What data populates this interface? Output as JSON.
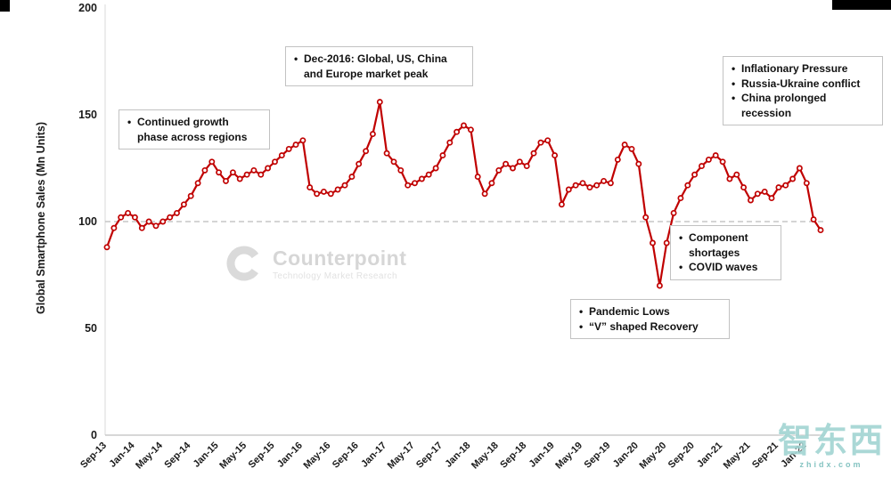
{
  "chart_data": {
    "type": "line",
    "series_name": "Global Smartphone Sales",
    "title": "",
    "xlabel": "",
    "ylabel": "Global Smartphone Sales (Mn Units)",
    "ylim": [
      0,
      200
    ],
    "yticks": [
      0,
      50,
      100,
      150,
      200
    ],
    "reference_line_y": 100,
    "line_color": "#c00000",
    "reference_color": "#c6c6c6",
    "grid": false,
    "legend": "none",
    "x_label_interval": 4,
    "x": [
      "Sep-13",
      "Oct-13",
      "Nov-13",
      "Dec-13",
      "Jan-14",
      "Feb-14",
      "Mar-14",
      "Apr-14",
      "May-14",
      "Jun-14",
      "Jul-14",
      "Aug-14",
      "Sep-14",
      "Oct-14",
      "Nov-14",
      "Dec-14",
      "Jan-15",
      "Feb-15",
      "Mar-15",
      "Apr-15",
      "May-15",
      "Jun-15",
      "Jul-15",
      "Aug-15",
      "Sep-15",
      "Oct-15",
      "Nov-15",
      "Dec-15",
      "Jan-16",
      "Feb-16",
      "Mar-16",
      "Apr-16",
      "May-16",
      "Jun-16",
      "Jul-16",
      "Aug-16",
      "Sep-16",
      "Oct-16",
      "Nov-16",
      "Dec-16",
      "Jan-17",
      "Feb-17",
      "Mar-17",
      "Apr-17",
      "May-17",
      "Jun-17",
      "Jul-17",
      "Aug-17",
      "Sep-17",
      "Oct-17",
      "Nov-17",
      "Dec-17",
      "Jan-18",
      "Feb-18",
      "Mar-18",
      "Apr-18",
      "May-18",
      "Jun-18",
      "Jul-18",
      "Aug-18",
      "Sep-18",
      "Oct-18",
      "Nov-18",
      "Dec-18",
      "Jan-19",
      "Feb-19",
      "Mar-19",
      "Apr-19",
      "May-19",
      "Jun-19",
      "Jul-19",
      "Aug-19",
      "Sep-19",
      "Oct-19",
      "Nov-19",
      "Dec-19",
      "Jan-20",
      "Feb-20",
      "Mar-20",
      "Apr-20",
      "May-20",
      "Jun-20",
      "Jul-20",
      "Aug-20",
      "Sep-20",
      "Oct-20",
      "Nov-20",
      "Dec-20",
      "Jan-21",
      "Feb-21",
      "Mar-21",
      "Apr-21",
      "May-21",
      "Jun-21",
      "Jul-21",
      "Aug-21",
      "Sep-21",
      "Oct-21",
      "Nov-21",
      "Dec-21",
      "Jan-22",
      "Feb-22",
      "Mar-22"
    ],
    "values": [
      88,
      97,
      102,
      104,
      102,
      97,
      100,
      98,
      100,
      102,
      104,
      108,
      112,
      118,
      124,
      128,
      123,
      119,
      123,
      120,
      122,
      124,
      122,
      125,
      128,
      131,
      134,
      136,
      138,
      116,
      113,
      114,
      113,
      115,
      117,
      121,
      127,
      133,
      141,
      156,
      132,
      128,
      124,
      117,
      118,
      120,
      122,
      125,
      131,
      137,
      142,
      145,
      143,
      121,
      113,
      118,
      124,
      127,
      125,
      128,
      126,
      132,
      137,
      138,
      131,
      108,
      115,
      117,
      118,
      116,
      117,
      119,
      118,
      129,
      136,
      134,
      127,
      102,
      90,
      70,
      90,
      104,
      111,
      117,
      122,
      126,
      129,
      131,
      128,
      120,
      122,
      116,
      110,
      113,
      114,
      111,
      116,
      117,
      120,
      125,
      118,
      101,
      96
    ]
  },
  "annotations": {
    "growth": {
      "items": [
        "Continued growth phase across regions"
      ]
    },
    "peak2016": {
      "items": [
        "Dec-2016: Global, US, China and Europe market peak"
      ]
    },
    "inflation": {
      "items": [
        "Inflationary Pressure",
        "Russia-Ukraine conflict",
        "China prolonged recession"
      ]
    },
    "shortages": {
      "items": [
        "Component shortages",
        "COVID waves"
      ]
    },
    "pandemic": {
      "items": [
        "Pandemic Lows",
        "“V” shaped Recovery"
      ]
    }
  },
  "watermarks": {
    "counterpoint": {
      "brand": "Counterpoint",
      "tagline": "Technology Market Research"
    },
    "corner": {
      "text": "智东西",
      "subtext": "zhidx.com"
    }
  }
}
